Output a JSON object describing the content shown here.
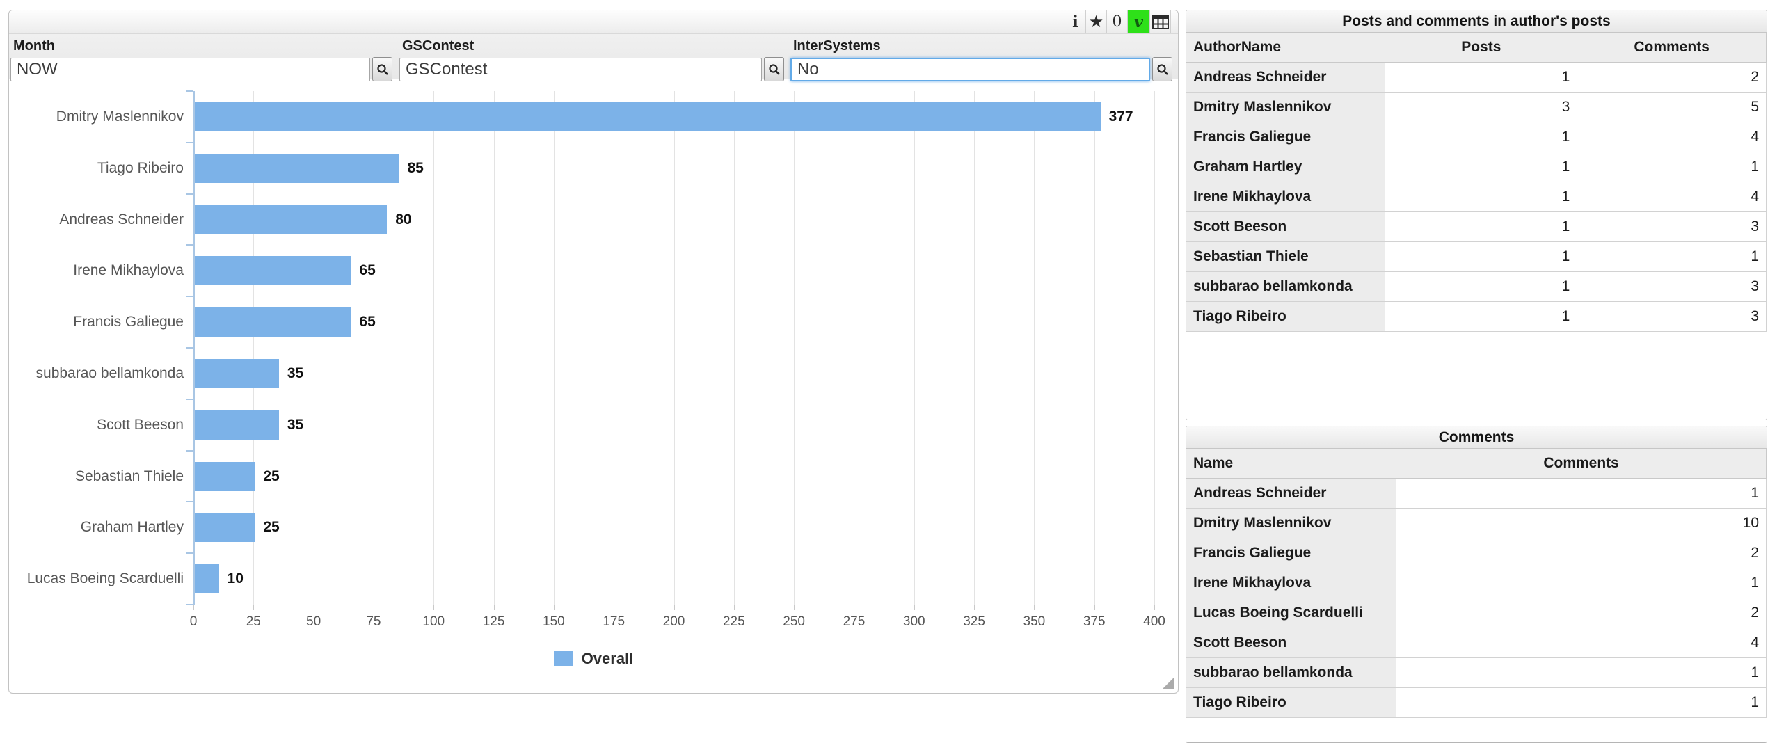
{
  "toolbar": {
    "icons": [
      {
        "name": "info",
        "glyph": "i"
      },
      {
        "name": "star",
        "glyph": "★"
      },
      {
        "name": "count",
        "glyph": "0"
      },
      {
        "name": "check",
        "glyph": "v",
        "bg": "#2ee019"
      },
      {
        "name": "grid",
        "glyph": "table-grid"
      }
    ]
  },
  "filters": [
    {
      "label": "Month",
      "value": "NOW"
    },
    {
      "label": "GSContest",
      "value": "GSContest"
    },
    {
      "label": "InterSystems",
      "value": "No"
    }
  ],
  "chart_data": {
    "type": "bar",
    "orientation": "horizontal",
    "categories": [
      "Dmitry Maslennikov",
      "Tiago Ribeiro",
      "Andreas Schneider",
      "Irene Mikhaylova",
      "Francis Galiegue",
      "subbarao bellamkonda",
      "Scott Beeson",
      "Sebastian Thiele",
      "Graham Hartley",
      "Lucas Boeing Scarduelli"
    ],
    "values": [
      377,
      85,
      80,
      65,
      65,
      35,
      35,
      25,
      25,
      10
    ],
    "series_name": "Overall",
    "xlim": [
      0,
      400
    ],
    "x_ticks": [
      0,
      25,
      50,
      75,
      100,
      125,
      150,
      175,
      200,
      225,
      250,
      275,
      300,
      325,
      350,
      375,
      400
    ],
    "bar_color": "#7cb2e8",
    "grid": true,
    "legend_position": "bottom",
    "title": "",
    "xlabel": "",
    "ylabel": ""
  },
  "tables": [
    {
      "title": "Posts and comments in author's posts",
      "columns": [
        "AuthorName",
        "Posts",
        "Comments"
      ],
      "rows": [
        [
          "Andreas Schneider",
          1,
          2
        ],
        [
          "Dmitry Maslennikov",
          3,
          5
        ],
        [
          "Francis Galiegue",
          1,
          4
        ],
        [
          "Graham Hartley",
          1,
          1
        ],
        [
          "Irene Mikhaylova",
          1,
          4
        ],
        [
          "Scott Beeson",
          1,
          3
        ],
        [
          "Sebastian Thiele",
          1,
          1
        ],
        [
          "subbarao bellamkonda",
          1,
          3
        ],
        [
          "Tiago Ribeiro",
          1,
          3
        ]
      ]
    },
    {
      "title": "Comments",
      "columns": [
        "Name",
        "Comments"
      ],
      "rows": [
        [
          "Andreas Schneider",
          1
        ],
        [
          "Dmitry Maslennikov",
          10
        ],
        [
          "Francis Galiegue",
          2
        ],
        [
          "Irene Mikhaylova",
          1
        ],
        [
          "Lucas Boeing Scarduelli",
          2
        ],
        [
          "Scott Beeson",
          4
        ],
        [
          "subbarao bellamkonda",
          1
        ],
        [
          "Tiago Ribeiro",
          1
        ]
      ]
    }
  ]
}
